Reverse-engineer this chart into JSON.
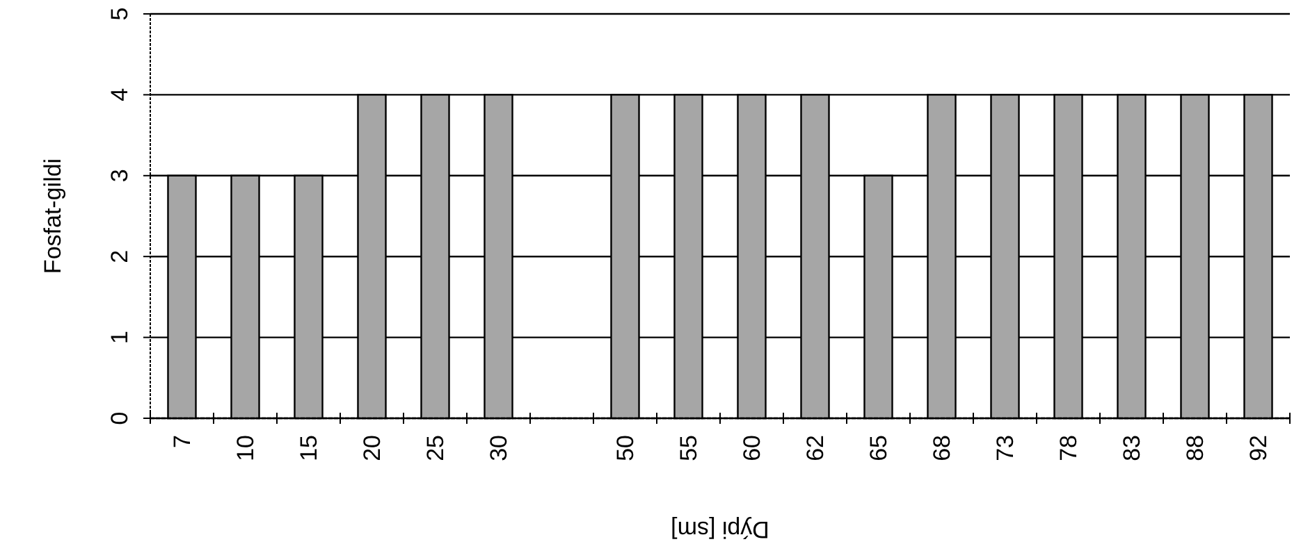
{
  "chart_data": {
    "type": "bar",
    "xlabel": "Dýpi [sm]",
    "ylabel": "Fosfat-gildi",
    "categories": [
      "7",
      "10",
      "15",
      "20",
      "25",
      "30",
      null,
      "50",
      "55",
      "60",
      "62",
      "65",
      "68",
      "73",
      "78",
      "83",
      "88",
      "92"
    ],
    "values": [
      3,
      3,
      3,
      4,
      4,
      4,
      null,
      4,
      4,
      4,
      4,
      3,
      4,
      4,
      4,
      4,
      4,
      4
    ],
    "color": "#a6a6a6",
    "ylim": [
      0,
      5
    ],
    "yticks": [
      0,
      1,
      2,
      3,
      4,
      5
    ],
    "grid": "y"
  }
}
